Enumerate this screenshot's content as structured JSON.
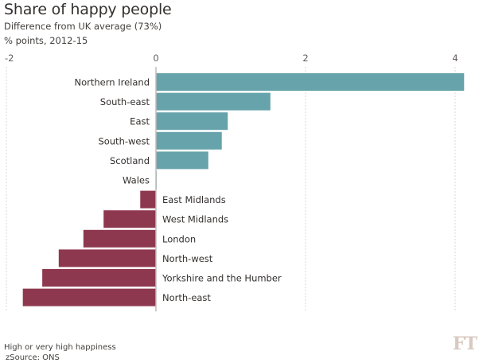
{
  "chart_data": {
    "type": "bar",
    "orientation": "horizontal",
    "title": "Share of happy people",
    "subtitle": "Difference from UK average (73%)",
    "units": "% points, 2012-15",
    "xlabel": "",
    "ylabel": "",
    "xlim": [
      -2,
      4.2
    ],
    "xticks": [
      -2,
      0,
      2,
      4
    ],
    "xtick_labels": [
      "-2",
      "0",
      "2",
      "4"
    ],
    "grid": true,
    "legend": "none",
    "categories": [
      "Northern Ireland",
      "South-east",
      "East",
      "South-west",
      "Scotland",
      "Wales",
      "East Midlands",
      "West Midlands",
      "London",
      "North-west",
      "Yorkshire and the Humber",
      "North-east"
    ],
    "values": [
      4.12,
      1.53,
      0.96,
      0.88,
      0.7,
      0.01,
      -0.21,
      -0.7,
      -0.97,
      -1.3,
      -1.52,
      -1.78
    ],
    "colors": {
      "positive": "#66a3ab",
      "negative": "#8e3850",
      "zero_line": "#c2bcb7",
      "grid": "#dcd6d0",
      "tick_text": "#66605c",
      "label_text": "#33302e"
    }
  },
  "footer": {
    "note": "High or very high happiness",
    "source": "zSource: ONS",
    "logo": "FT"
  }
}
